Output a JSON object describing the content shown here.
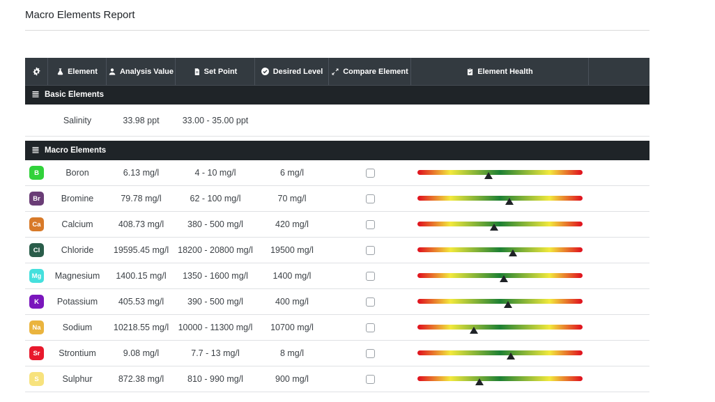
{
  "page": {
    "title": "Macro Elements Report"
  },
  "colors": {
    "header_bg": "#333a40",
    "section_bg": "#1f2428",
    "row_border": "#dfe1e4",
    "marker": "#1f2327"
  },
  "table": {
    "columns": [
      {
        "icon": "gear-icon",
        "label": ""
      },
      {
        "icon": "flask-icon",
        "label": "Element"
      },
      {
        "icon": "user-icon",
        "label": "Analysis Value"
      },
      {
        "icon": "file-icon",
        "label": "Set Point"
      },
      {
        "icon": "check-circle-icon",
        "label": "Desired Level"
      },
      {
        "icon": "compare-arrows-icon",
        "label": "Compare Element"
      },
      {
        "icon": "clipboard-check-icon",
        "label": "Element Health"
      },
      {
        "icon": "",
        "label": ""
      }
    ],
    "health_bar": {
      "gradient": [
        "#e0161f 1%",
        "#f2e93c 20%",
        "#1d8034 50%",
        "#f2e93c 80%",
        "#e0161f 99%"
      ]
    },
    "sections": [
      {
        "title": "Basic Elements",
        "rows": [
          {
            "name": "Salinity",
            "analysis_value": "33.98 ppt",
            "set_point": "33.00 - 35.00 ppt",
            "desired_level": ""
          }
        ]
      },
      {
        "title": "Macro Elements",
        "rows": [
          {
            "symbol": "B",
            "badge_color": "#31d23b",
            "name": "Boron",
            "analysis_value": "6.13 mg/l",
            "set_point": "4 - 10 mg/l",
            "desired_level": "6 mg/l",
            "checkbox_checked": false,
            "marker_pct": 43
          },
          {
            "symbol": "Br",
            "badge_color": "#6a3d76",
            "name": "Bromine",
            "analysis_value": "79.78 mg/l",
            "set_point": "62 - 100 mg/l",
            "desired_level": "70 mg/l",
            "checkbox_checked": false,
            "marker_pct": 55.5
          },
          {
            "symbol": "Ca",
            "badge_color": "#d87a29",
            "name": "Calcium",
            "analysis_value": "408.73 mg/l",
            "set_point": "380 - 500 mg/l",
            "desired_level": "420 mg/l",
            "checkbox_checked": false,
            "marker_pct": 46.5
          },
          {
            "symbol": "Cl",
            "badge_color": "#2a5d4a",
            "name": "Chloride",
            "analysis_value": "19595.45 mg/l",
            "set_point": "18200 - 20800 mg/l",
            "desired_level": "19500 mg/l",
            "checkbox_checked": false,
            "marker_pct": 58
          },
          {
            "symbol": "Mg",
            "badge_color": "#45e0dd",
            "name": "Magnesium",
            "analysis_value": "1400.15 mg/l",
            "set_point": "1350 - 1600 mg/l",
            "desired_level": "1400 mg/l",
            "checkbox_checked": false,
            "marker_pct": 52.5
          },
          {
            "symbol": "K",
            "badge_color": "#7a16bc",
            "name": "Potassium",
            "analysis_value": "405.53 mg/l",
            "set_point": "390 - 500 mg/l",
            "desired_level": "400 mg/l",
            "checkbox_checked": false,
            "marker_pct": 55
          },
          {
            "symbol": "Na",
            "badge_color": "#eab43e",
            "name": "Sodium",
            "analysis_value": "10218.55 mg/l",
            "set_point": "10000 - 11300 mg/l",
            "desired_level": "10700 mg/l",
            "checkbox_checked": false,
            "marker_pct": 34
          },
          {
            "symbol": "Sr",
            "badge_color": "#e8192c",
            "name": "Strontium",
            "analysis_value": "9.08 mg/l",
            "set_point": "7.7 - 13 mg/l",
            "desired_level": "8 mg/l",
            "checkbox_checked": false,
            "marker_pct": 56.5
          },
          {
            "symbol": "S",
            "badge_color": "#f7e27d",
            "name": "Sulphur",
            "analysis_value": "872.38 mg/l",
            "set_point": "810 - 990 mg/l",
            "desired_level": "900 mg/l",
            "checkbox_checked": false,
            "marker_pct": 37.5
          }
        ]
      }
    ]
  }
}
